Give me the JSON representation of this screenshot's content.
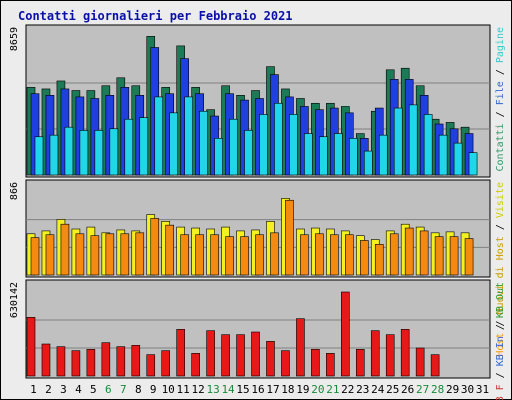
{
  "chart_data": {
    "type": "bar",
    "title": "Contatti giornalieri per Febbraio 2021",
    "days": [
      "1",
      "2",
      "3",
      "4",
      "5",
      "6",
      "7",
      "8",
      "9",
      "10",
      "11",
      "12",
      "13",
      "14",
      "15",
      "16",
      "17",
      "18",
      "19",
      "20",
      "21",
      "22",
      "23",
      "24",
      "25",
      "26",
      "27",
      "28",
      "29",
      "30",
      "31"
    ],
    "weekend_days": [
      "6",
      "7",
      "13",
      "14",
      "20",
      "21",
      "27",
      "28"
    ],
    "panels": [
      {
        "id": "top",
        "ymax_label": "8659",
        "ymax": 8659,
        "legend": [
          {
            "label": "Contatti",
            "color": "#339966"
          },
          {
            "label": "File",
            "color": "#3366cc"
          },
          {
            "label": "Pagine",
            "color": "#33cccc"
          }
        ],
        "series": [
          {
            "name": "Contatti",
            "color": "#1d7a56",
            "values": [
              5500,
              5400,
              5900,
              5300,
              5300,
              5600,
              6100,
              5600,
              8700,
              5500,
              8100,
              5500,
              4100,
              5600,
              5000,
              5300,
              6800,
              5400,
              4800,
              4500,
              4500,
              4300,
              2600,
              4000,
              6600,
              6700,
              5600,
              3500,
              3300,
              3000,
              null
            ]
          },
          {
            "name": "File",
            "color": "#1f3fe0",
            "values": [
              5100,
              5000,
              5400,
              4900,
              4800,
              5000,
              5500,
              5000,
              8000,
              5100,
              7300,
              5100,
              3700,
              5100,
              4700,
              4800,
              6300,
              4900,
              4300,
              4100,
              4200,
              3900,
              2300,
              4200,
              6000,
              6000,
              5000,
              3200,
              2900,
              2600,
              null
            ]
          },
          {
            "name": "Pagine",
            "color": "#22d6ea",
            "values": [
              2400,
              2500,
              3000,
              2800,
              2800,
              2900,
              3500,
              3600,
              4900,
              3900,
              4900,
              4000,
              2300,
              3500,
              2800,
              3800,
              4500,
              3800,
              2600,
              2400,
              2600,
              2300,
              1500,
              2500,
              4200,
              4400,
              3800,
              2500,
              2000,
              1400,
              null
            ]
          }
        ]
      },
      {
        "id": "middle",
        "ymax_label": "866",
        "ymax": 866,
        "legend": [
          {
            "label": "Host",
            "color": "#ff9900"
          },
          {
            "label": "Nuovi di Host",
            "color": "#cc9900"
          },
          {
            "label": "Visite",
            "color": "#cccc00"
          }
        ],
        "series": [
          {
            "name": "Visite",
            "color": "#f5f020",
            "values": [
              430,
              460,
              580,
              480,
              500,
              440,
              470,
              460,
              630,
              560,
              500,
              490,
              480,
              500,
              460,
              470,
              560,
              800,
              480,
              490,
              480,
              460,
              410,
              370,
              460,
              530,
              500,
              440,
              450,
              440,
              null
            ]
          },
          {
            "name": "Host",
            "color": "#f58a10",
            "values": [
              390,
              420,
              530,
              430,
              410,
              430,
              430,
              440,
              590,
              520,
              420,
              420,
              420,
              400,
              400,
              420,
              440,
              780,
              420,
              430,
              420,
              420,
              360,
              320,
              430,
              490,
              460,
              400,
              400,
              380,
              null
            ]
          }
        ]
      },
      {
        "id": "bottom",
        "ymax_label": "630142",
        "ymax": 630142,
        "legend": [
          {
            "label": "KB F",
            "color": "#cc3333"
          },
          {
            "label": "KB In",
            "color": "#3366cc"
          },
          {
            "label": "KB Out",
            "color": "#339933"
          }
        ],
        "series": [
          {
            "name": "KB F",
            "color": "#e61818",
            "values": [
              440000,
              240000,
              220000,
              190000,
              200000,
              250000,
              220000,
              230000,
              160000,
              190000,
              350000,
              170000,
              340000,
              310000,
              310000,
              330000,
              260000,
              190000,
              430000,
              200000,
              170000,
              630142,
              200000,
              340000,
              310000,
              350000,
              210000,
              160000,
              null,
              null,
              null
            ]
          }
        ]
      }
    ]
  }
}
